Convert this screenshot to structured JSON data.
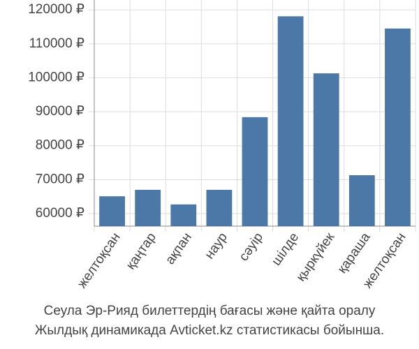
{
  "chart_data": {
    "type": "bar",
    "title": "Сеула Эр-Рияд билеттердің бағасы және қайта оралу",
    "subtitle": "Жылдық динамикада Avticket.kz статистикасы бойынша.",
    "categories": [
      "желтоқсан",
      "қаңтар",
      "ақпан",
      "наур",
      "сәуір",
      "шілде",
      "қыркүйек",
      "қараша",
      "желтоқсан"
    ],
    "values": [
      65100,
      67000,
      62700,
      67000,
      88400,
      118100,
      101300,
      71300,
      114500
    ],
    "color": "#4c78a8",
    "ylim": [
      56300,
      122900
    ],
    "yticks": [
      {
        "value": 60000,
        "label": "60000 ₽"
      },
      {
        "value": 70000,
        "label": "70000 ₽"
      },
      {
        "value": 80000,
        "label": "80000 ₽"
      },
      {
        "value": 90000,
        "label": "90000 ₽"
      },
      {
        "value": 100000,
        "label": "100000 ₽"
      },
      {
        "value": 110000,
        "label": "110000 ₽"
      },
      {
        "value": 120000,
        "label": "120000 ₽"
      }
    ],
    "grid": true
  }
}
